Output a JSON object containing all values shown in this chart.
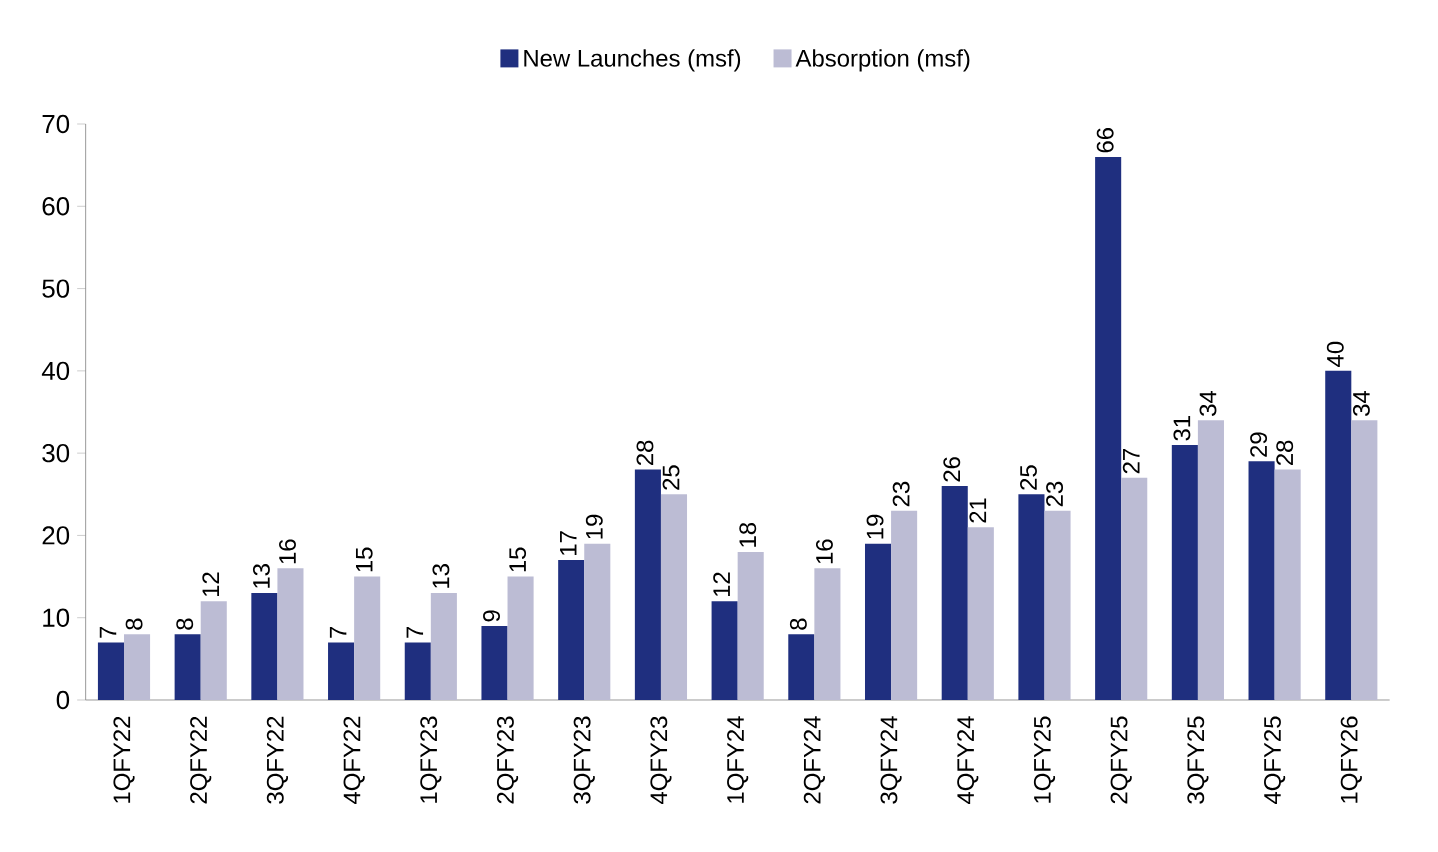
{
  "chart_data": {
    "type": "bar",
    "categories": [
      "1QFY22",
      "2QFY22",
      "3QFY22",
      "4QFY22",
      "1QFY23",
      "2QFY23",
      "3QFY23",
      "4QFY23",
      "1QFY24",
      "2QFY24",
      "3QFY24",
      "4QFY24",
      "1QFY25",
      "2QFY25",
      "3QFY25",
      "4QFY25",
      "1QFY26"
    ],
    "series": [
      {
        "name": "New Launches (msf)",
        "color": "#1f2f7f",
        "values": [
          7,
          8,
          13,
          7,
          7,
          9,
          17,
          28,
          12,
          8,
          19,
          26,
          25,
          66,
          31,
          29,
          40
        ]
      },
      {
        "name": "Absorption (msf)",
        "color": "#bcbcd4",
        "values": [
          8,
          12,
          16,
          15,
          13,
          15,
          19,
          25,
          18,
          16,
          23,
          21,
          23,
          27,
          34,
          28,
          34
        ]
      }
    ],
    "ylim": [
      0,
      70
    ],
    "yticks": [
      0,
      10,
      20,
      30,
      40,
      50,
      60,
      70
    ],
    "data_labels": true,
    "legend": "top",
    "grid": false
  }
}
